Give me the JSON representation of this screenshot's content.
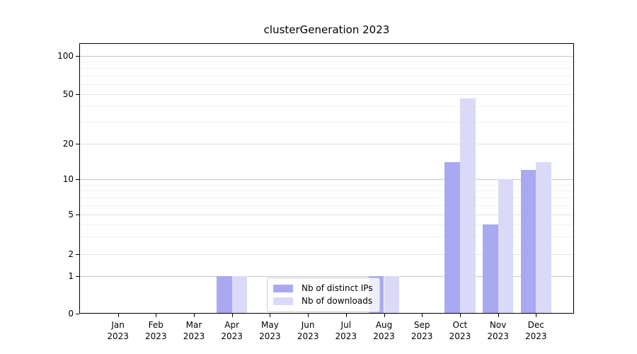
{
  "title": "clusterGeneration 2023",
  "legend": {
    "items": [
      {
        "label": "Nb of distinct IPs",
        "color": "#a9a9f1"
      },
      {
        "label": "Nb of downloads",
        "color": "#dadaf8"
      }
    ]
  },
  "chart_data": {
    "type": "bar",
    "title": "clusterGeneration 2023",
    "categories": [
      "Jan 2023",
      "Feb 2023",
      "Mar 2023",
      "Apr 2023",
      "May 2023",
      "Jun 2023",
      "Jul 2023",
      "Aug 2023",
      "Sep 2023",
      "Oct 2023",
      "Nov 2023",
      "Dec 2023"
    ],
    "series": [
      {
        "name": "Nb of distinct IPs",
        "color": "#a9a9f1",
        "values": [
          0,
          0,
          0,
          1,
          0,
          0,
          0,
          1,
          0,
          14,
          4,
          12
        ]
      },
      {
        "name": "Nb of downloads",
        "color": "#dadaf8",
        "values": [
          0,
          0,
          0,
          1,
          0,
          0,
          0,
          1,
          0,
          46,
          10,
          14
        ]
      }
    ],
    "yscale": "symlog",
    "ylim": [
      0,
      112
    ],
    "yticks": [
      0,
      1,
      2,
      5,
      10,
      20,
      50,
      100
    ],
    "grid_lines": {
      "major": [
        1,
        10,
        100
      ],
      "mid": [
        2,
        5,
        20,
        50
      ],
      "minor": [
        3,
        4,
        6,
        7,
        8,
        9,
        30,
        40,
        60,
        70,
        80,
        90
      ]
    },
    "legend_position": "lower center inside plot",
    "grid": "on"
  },
  "colors": {
    "background": "#ffffff",
    "spine": "#000000",
    "grid_major": "#c8c8c8",
    "grid_mid": "#e2e2e2",
    "grid_minor": "#f1f1f1"
  }
}
